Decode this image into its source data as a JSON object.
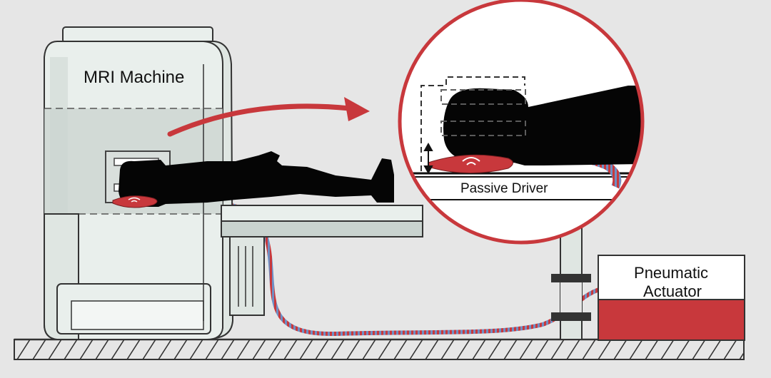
{
  "labels": {
    "mri_machine": "MRI Machine",
    "passive_driver": "Passive Driver",
    "pneumatic_line1": "Pneumatic",
    "pneumatic_line2": "Actuator"
  },
  "colors": {
    "background": "#e6e6e6",
    "machine_body": "#e9efec",
    "machine_shade": "#c9d3cf",
    "accent_red": "#c8383c",
    "hose_blue": "#6f8fc4",
    "outline": "#333333"
  }
}
